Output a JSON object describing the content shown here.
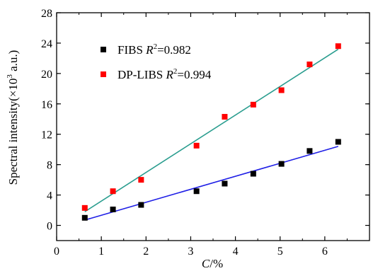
{
  "chart_data": {
    "type": "scatter",
    "title": "",
    "xlabel": "C/%",
    "xlabel_parts": {
      "var": "C",
      "rest": "/%"
    },
    "ylabel": "Spectral intensity(×10³ a.u.)",
    "ylabel_parts": {
      "main": "Spectral intensity(×10",
      "sup": "3",
      "tail": " a.u.)"
    },
    "xlim": [
      0,
      7
    ],
    "ylim": [
      -2,
      28
    ],
    "xticks": [
      0,
      1,
      2,
      3,
      4,
      5,
      6
    ],
    "yticks": [
      0,
      4,
      8,
      12,
      16,
      20,
      24,
      28
    ],
    "grid": false,
    "legend_position": "upper-left",
    "series": [
      {
        "name": "FIBS",
        "r2_label": "=0.982",
        "marker_color": "#000000",
        "fit_color": "#1f1fe6",
        "x": [
          0.63,
          1.26,
          1.89,
          3.13,
          3.76,
          4.4,
          5.03,
          5.66,
          6.3
        ],
        "y": [
          1.0,
          2.1,
          2.7,
          4.5,
          5.5,
          6.8,
          8.1,
          9.8,
          11.0
        ],
        "fit": {
          "x": [
            0.63,
            6.3
          ],
          "y": [
            0.7,
            10.4
          ]
        }
      },
      {
        "name": "DP-LIBS",
        "r2_label": "=0.994",
        "marker_color": "#ff0000",
        "fit_color": "#2a9d8f",
        "x": [
          0.63,
          1.26,
          1.89,
          3.13,
          3.76,
          4.4,
          5.03,
          5.66,
          6.3
        ],
        "y": [
          2.3,
          4.5,
          6.0,
          10.5,
          14.3,
          15.9,
          17.8,
          21.2,
          23.6
        ],
        "fit": {
          "x": [
            0.63,
            6.3
          ],
          "y": [
            1.8,
            23.2
          ]
        }
      }
    ]
  }
}
